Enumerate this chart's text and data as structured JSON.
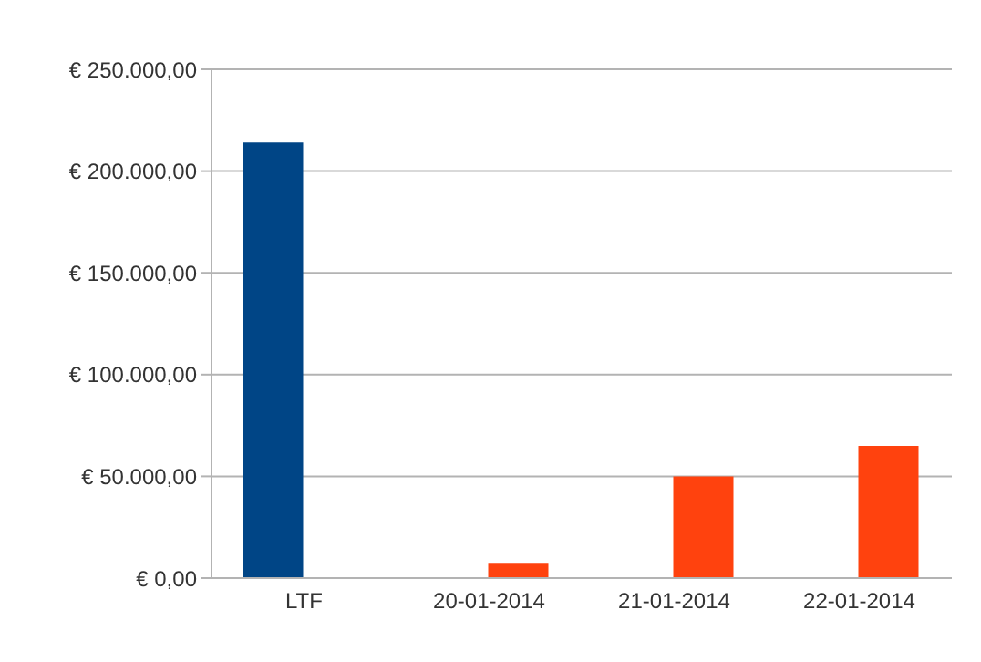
{
  "chart_data": {
    "type": "bar",
    "categories": [
      "LTF",
      "20-01-2014",
      "21-01-2014",
      "22-01-2014"
    ],
    "series": [
      {
        "color": "#004586",
        "values": [
          214000,
          null,
          null,
          null
        ]
      },
      {
        "color": "#ff420e",
        "values": [
          null,
          7500,
          50000,
          65000
        ]
      }
    ],
    "ylim": [
      0,
      250000
    ],
    "yticks": [
      {
        "value": 0,
        "label": "€ 0,00"
      },
      {
        "value": 50000,
        "label": "€ 50.000,00"
      },
      {
        "value": 100000,
        "label": "€ 100.000,00"
      },
      {
        "value": 150000,
        "label": "€ 150.000,00"
      },
      {
        "value": 200000,
        "label": "€ 200.000,00"
      },
      {
        "value": 250000,
        "label": "€ 250.000,00"
      }
    ],
    "grid": "y",
    "legend": false
  }
}
